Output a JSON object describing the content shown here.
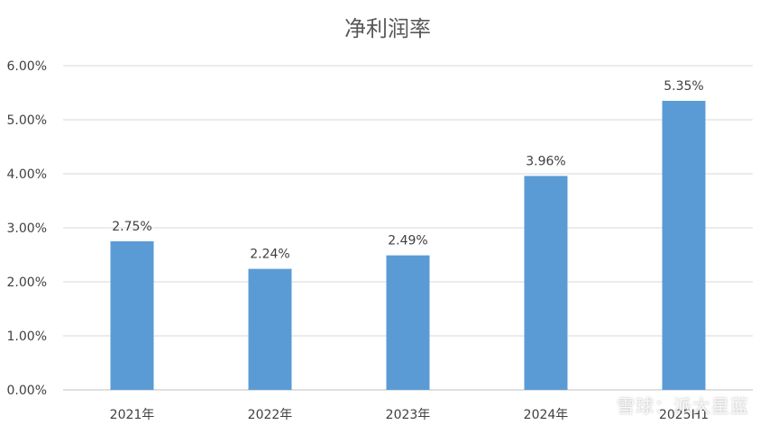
{
  "chart_data": {
    "type": "bar",
    "title": "净利润率",
    "xlabel": "",
    "ylabel": "",
    "categories": [
      "2021年",
      "2022年",
      "2023年",
      "2024年",
      "2025H1"
    ],
    "values": [
      2.75,
      2.24,
      2.49,
      3.96,
      5.35
    ],
    "data_labels": [
      "2.75%",
      "2.24%",
      "2.49%",
      "3.96%",
      "5.35%"
    ],
    "ylim": [
      0,
      6
    ],
    "yticks": [
      "0.00%",
      "1.00%",
      "2.00%",
      "3.00%",
      "4.00%",
      "5.00%",
      "6.00%"
    ],
    "grid": true,
    "legend": "none",
    "bar_color": "#5b9bd5"
  },
  "watermark": "雪球：派大星蓝"
}
